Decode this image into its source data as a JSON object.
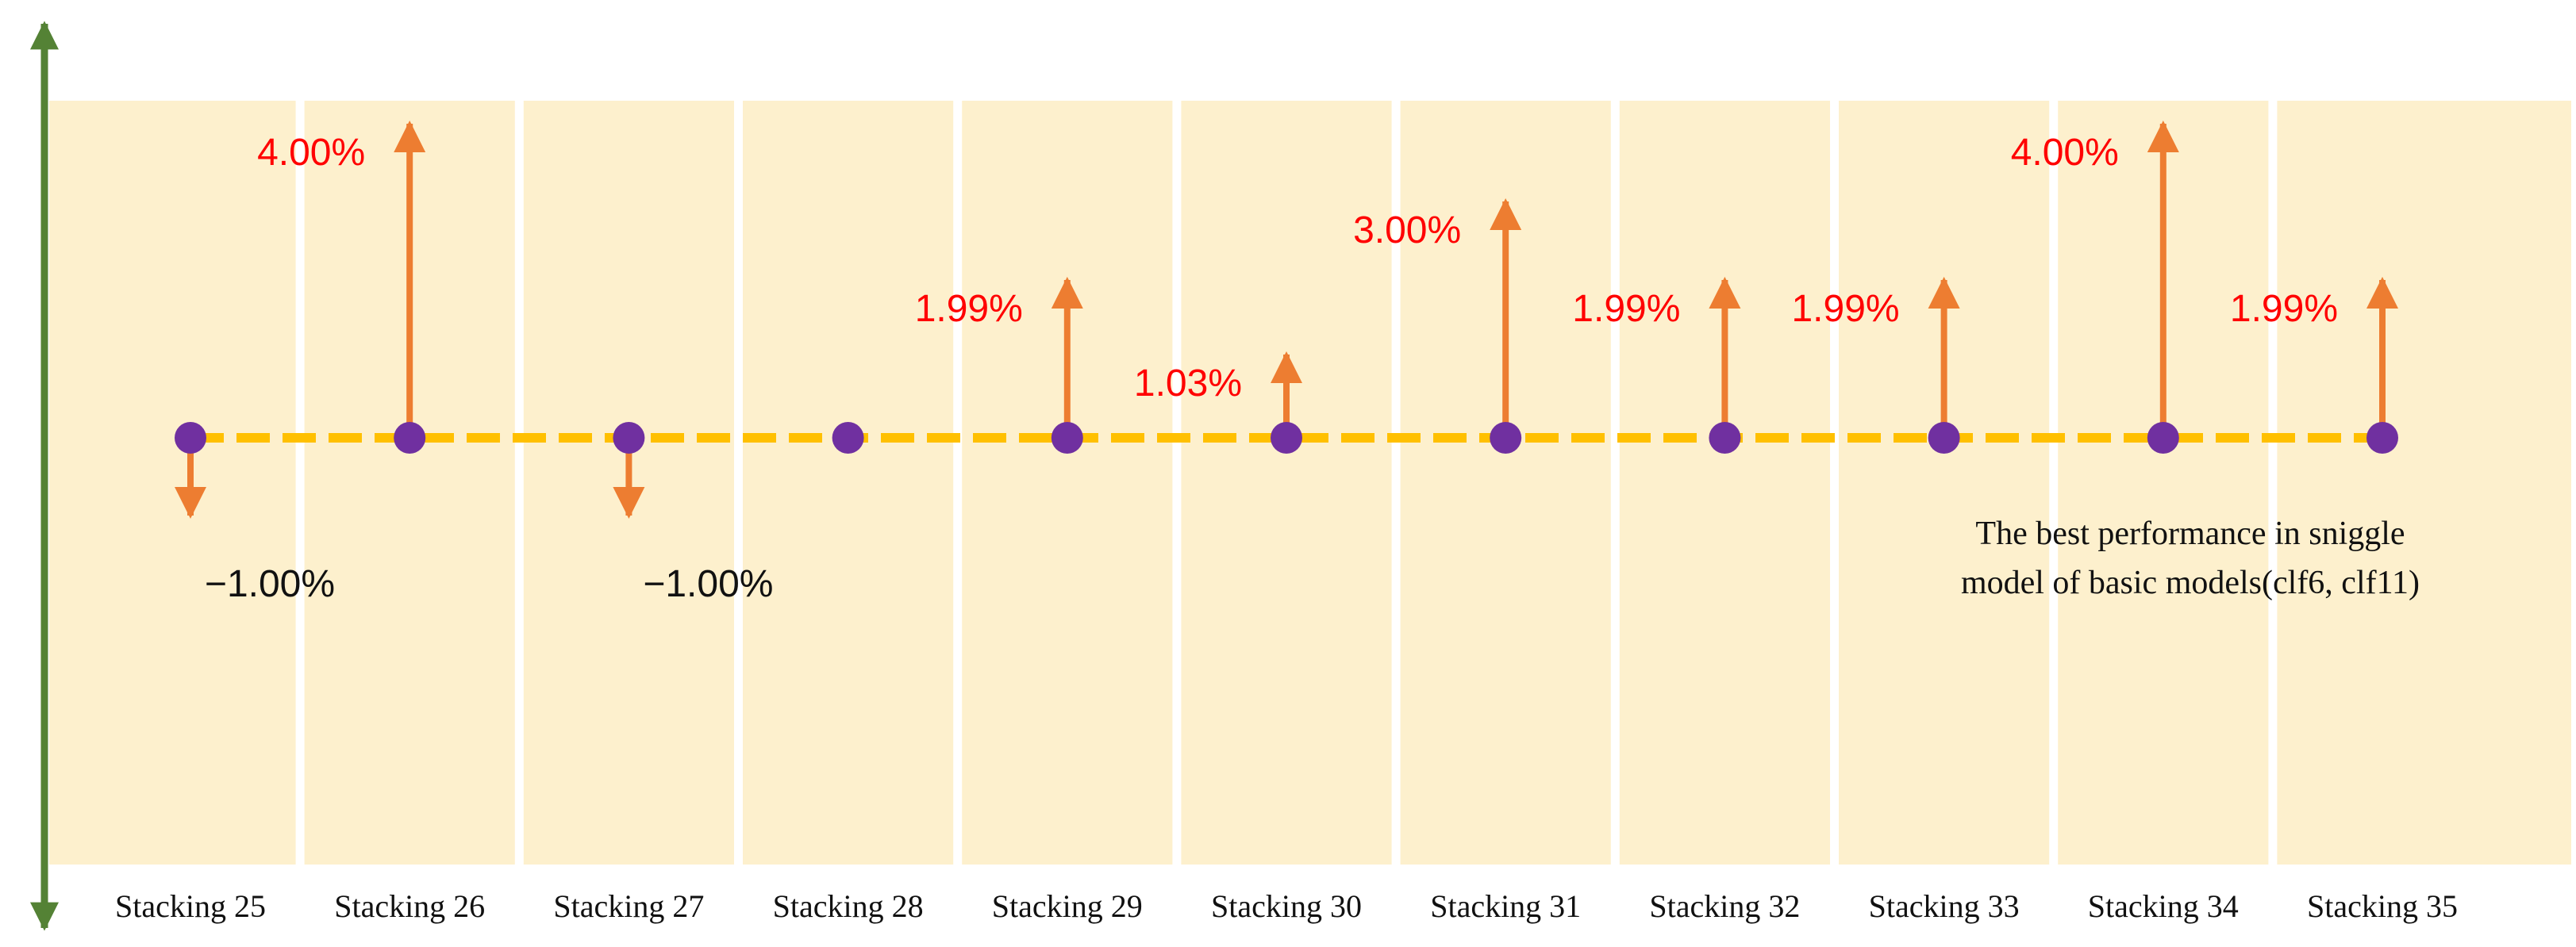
{
  "chart_data": {
    "type": "bar",
    "categories": [
      "Stacking 25",
      "Stacking 26",
      "Stacking 27",
      "Stacking 28",
      "Stacking 29",
      "Stacking 30",
      "Stacking 31",
      "Stacking 32",
      "Stacking 33",
      "Stacking 34",
      "Stacking 35"
    ],
    "values": [
      -1.0,
      4.0,
      -1.0,
      0,
      1.99,
      1.03,
      3.0,
      1.99,
      1.99,
      4.0,
      1.99
    ],
    "value_labels": [
      "−1.00%",
      "4.00%",
      "−1.00%",
      "",
      "1.99%",
      "1.03%",
      "3.00%",
      "1.99%",
      "1.99%",
      "4.00%",
      "1.99%"
    ],
    "unit": "%",
    "baseline_note": [
      "The best performance in sniggle",
      "model of basic models(clf6, clf11)"
    ],
    "ylim": [
      -5,
      4.6
    ],
    "grid": false,
    "colors": {
      "background_band": "#fdf0cd",
      "divider": "#ffffff",
      "baseline": "#ffc000",
      "point": "#7030a0",
      "arrow": "#ed7d31",
      "axis": "#548235",
      "positive_label": "#ff0000",
      "negative_label": "#111111"
    }
  }
}
